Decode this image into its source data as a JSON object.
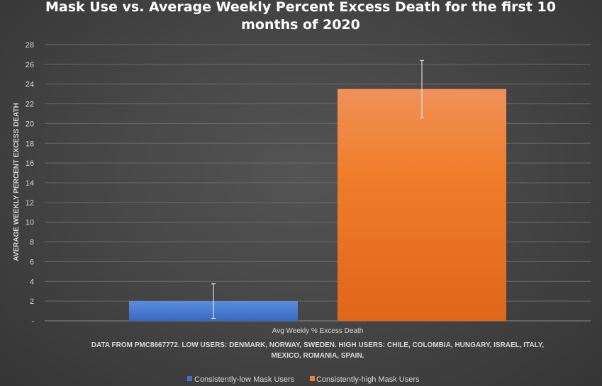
{
  "chart_data": {
    "type": "bar",
    "title_lines": [
      "Mask Use vs. Average Weekly Percent Excess Death for the first 10",
      "months of 2020"
    ],
    "ylabel": "AVERAGE WEEKLY PERCENT EXCESS DEATH",
    "xlabel": "Avg Weekly % Excess Death",
    "ylim": [
      0,
      28
    ],
    "yticks": [
      0,
      2,
      4,
      6,
      8,
      10,
      12,
      14,
      16,
      18,
      20,
      22,
      24,
      26,
      28
    ],
    "y_zero_label": "-",
    "grid": true,
    "legend_position": "bottom",
    "note_lines": [
      "DATA FROM PMC8667772. LOW USERS: DENMARK, NORWAY, SWEDEN. HIGH USERS: CHILE, COLOMBIA, HUNGARY, ISRAEL, ITALY,",
      "MEXICO, ROMANIA, SPAIN."
    ],
    "categories": [
      "Avg Weekly % Excess Death"
    ],
    "series": [
      {
        "name": "Consistently-low Mask Users",
        "values": [
          2.0
        ],
        "error": [
          1.75
        ],
        "color": "#4472c4"
      },
      {
        "name": "Consistently-high Mask Users",
        "values": [
          23.5
        ],
        "error": [
          2.9
        ],
        "color": "#ed7d31"
      }
    ]
  }
}
